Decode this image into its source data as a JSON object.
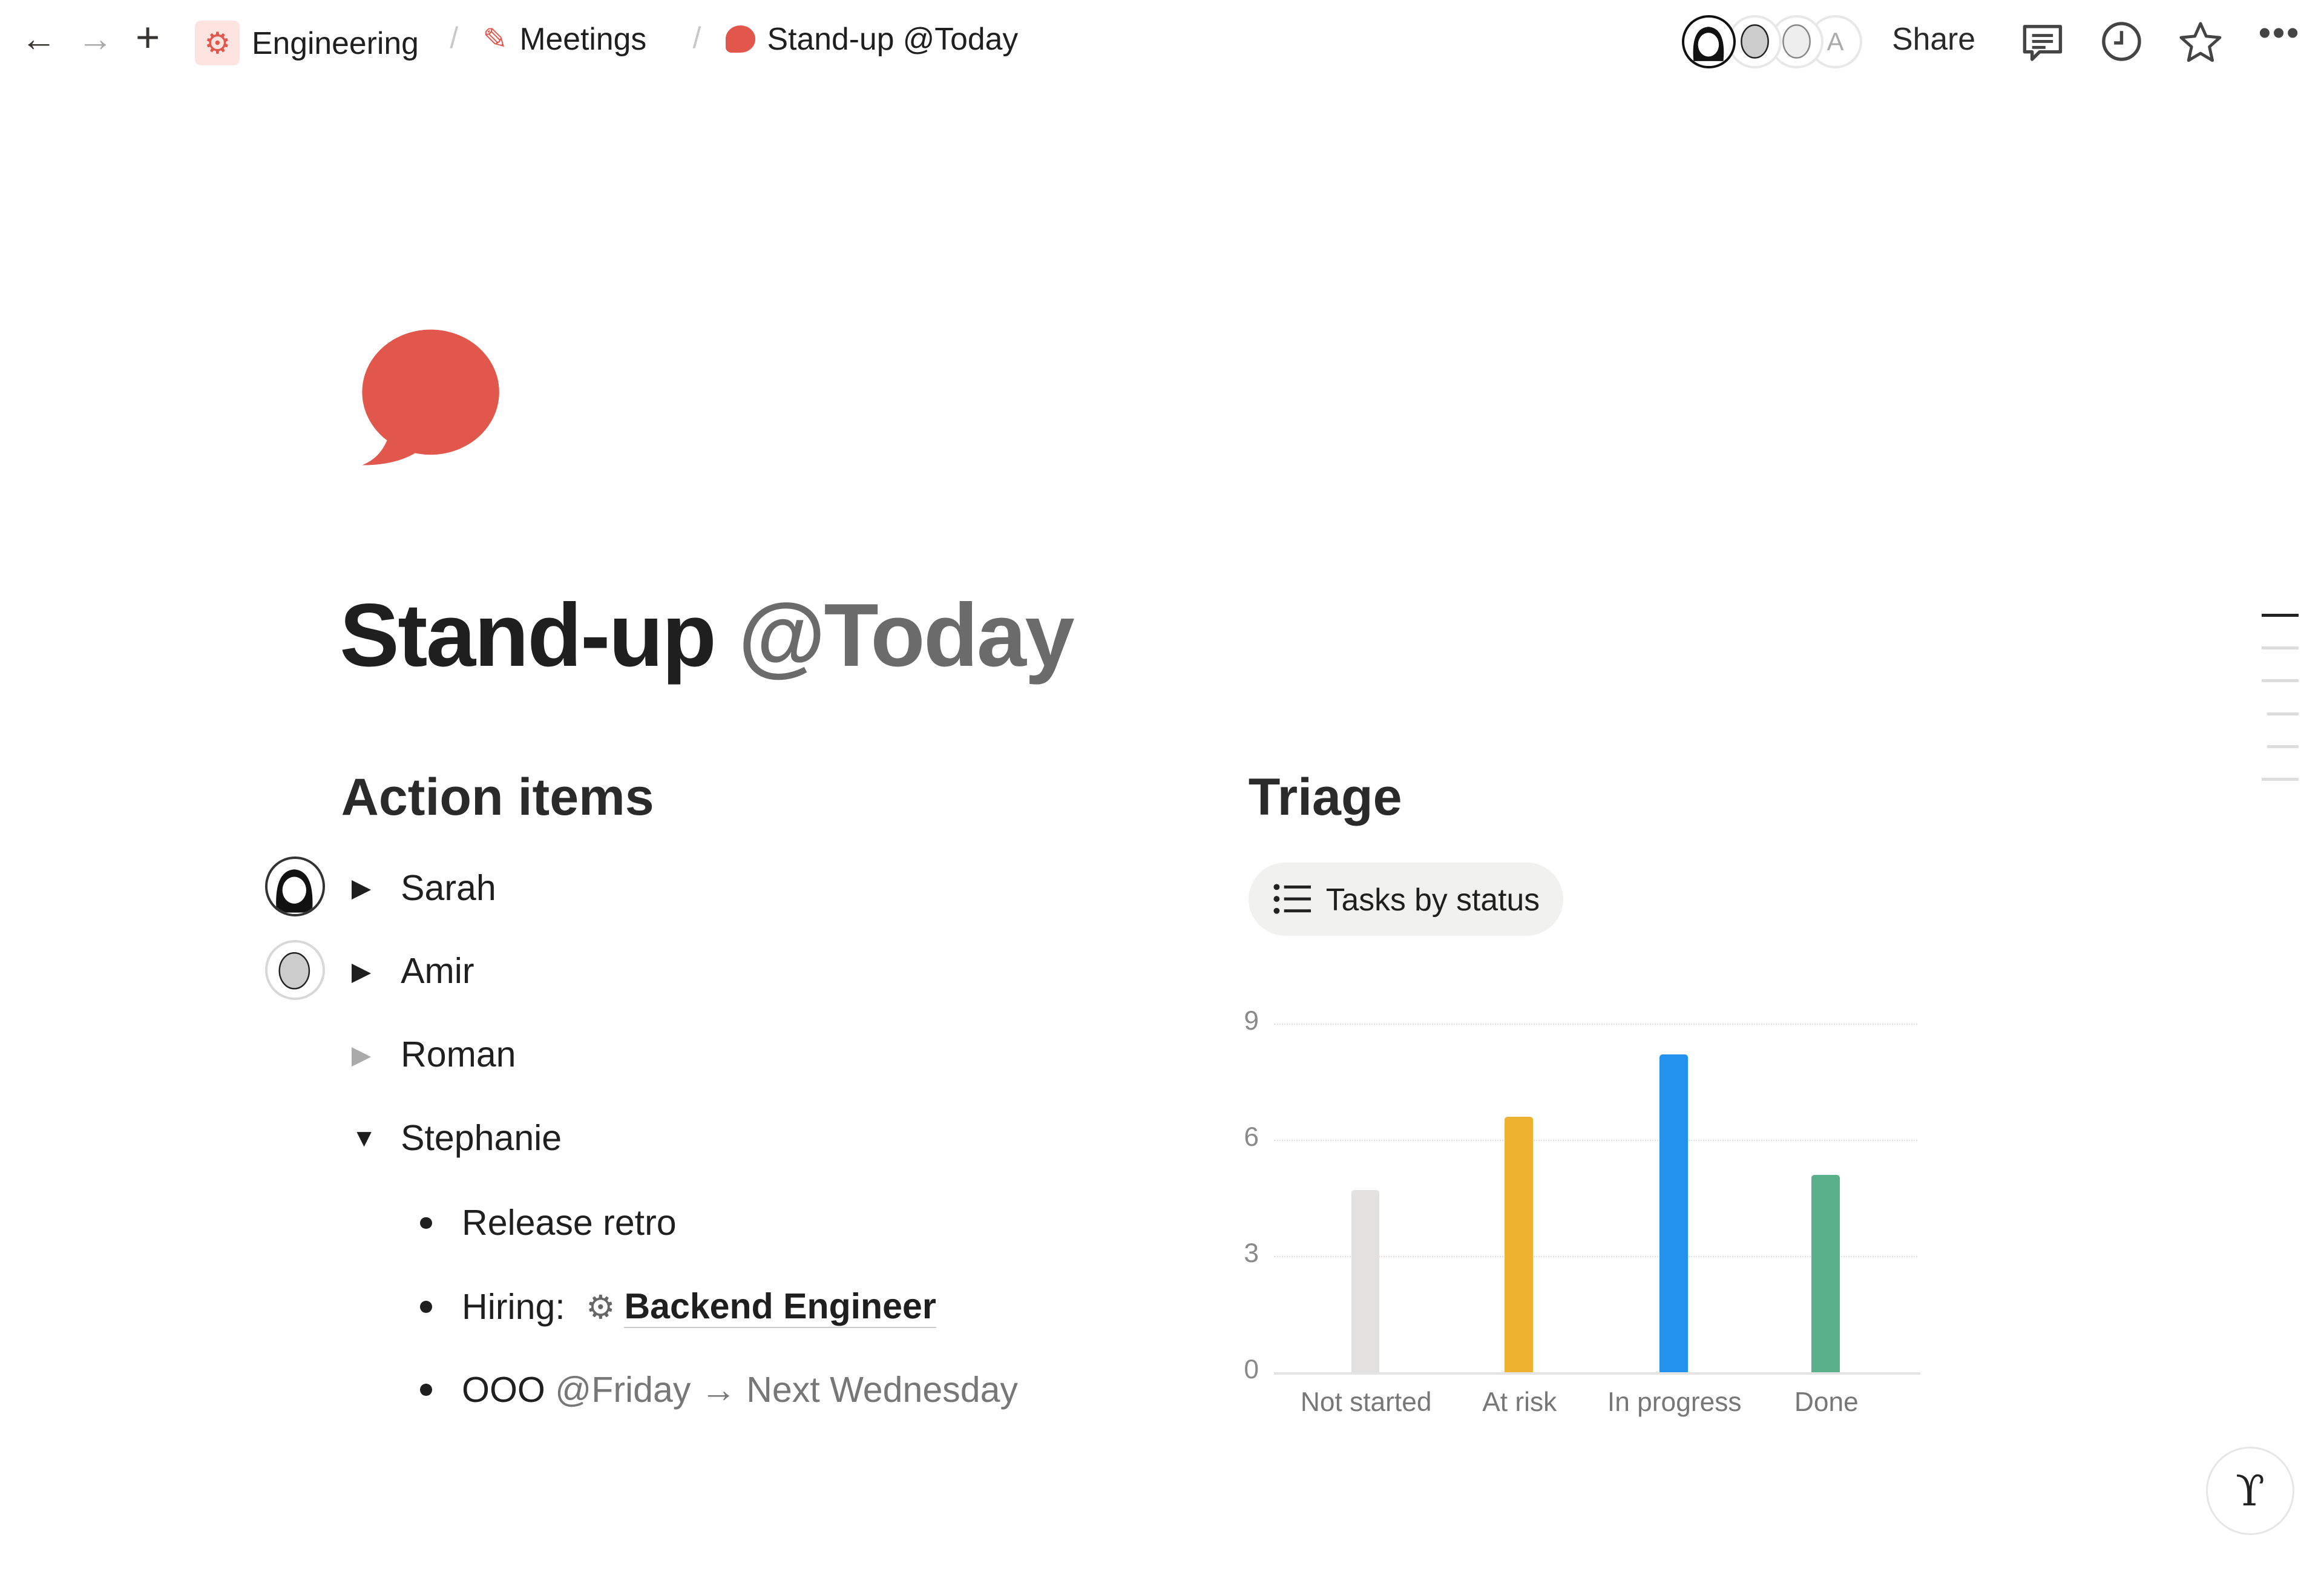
{
  "topbar": {
    "breadcrumbs": [
      {
        "label": "Engineering",
        "icon": "gear-icon"
      },
      {
        "label": "Meetings",
        "icon": "pencil-icon"
      },
      {
        "label": "Stand-up @Today",
        "icon": "speech-bubble-icon"
      }
    ],
    "avatars_extra_initial": "A",
    "share_label": "Share"
  },
  "page": {
    "title_main": "Stand-up",
    "title_date": "@Today",
    "icon": "speech-bubble-icon",
    "accent": "#e2574c"
  },
  "action_items": {
    "heading": "Action items",
    "people": [
      {
        "name": "Sarah",
        "expanded": false
      },
      {
        "name": "Amir",
        "expanded": false
      },
      {
        "name": "Roman",
        "expanded": false
      },
      {
        "name": "Stephanie",
        "expanded": true
      }
    ],
    "stephanie_items": {
      "item1": "Release retro",
      "item2_prefix": "Hiring:",
      "item2_link": "Backend Engineer",
      "item3_text": "OOO",
      "item3_date": "@Friday",
      "item3_arrow": "→",
      "item3_next": "Next Wednesday"
    }
  },
  "triage": {
    "heading": "Triage",
    "view_label": "Tasks by status"
  },
  "chart_data": {
    "type": "bar",
    "categories": [
      "Not started",
      "At risk",
      "In progress",
      "Done"
    ],
    "values": [
      4.7,
      6.6,
      8.2,
      5.1
    ],
    "colors": [
      "#e3e0e0",
      "#efb130",
      "#2391ee",
      "#5bb08c"
    ],
    "yticks": [
      0,
      3,
      6,
      9
    ],
    "ylim": [
      0,
      9
    ],
    "grid": true
  }
}
